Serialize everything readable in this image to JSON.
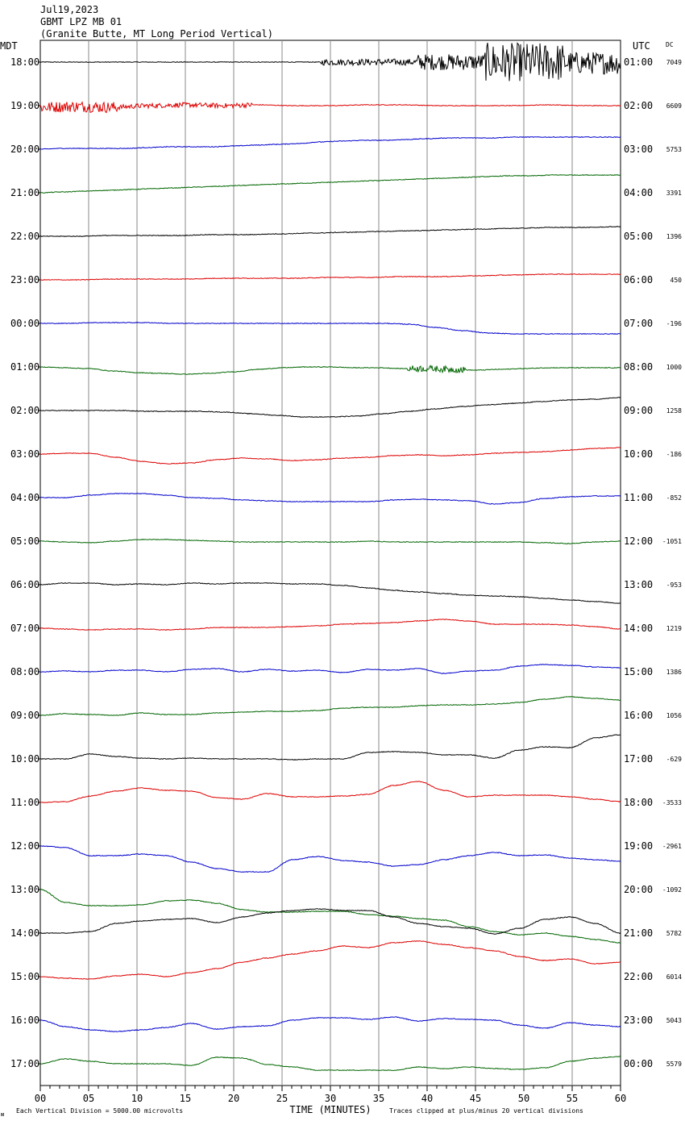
{
  "header": {
    "date": "Jul19,2023",
    "station": "GBMT LPZ MB 01",
    "description": "(Granite Butte, MT Long Period Vertical)"
  },
  "left_axis_label": "MDT",
  "right_axis_label": "UTC",
  "dc_label": "DC",
  "footer": {
    "scale_note": "Each Vertical Division = 5000.00 microvolts",
    "clip_note": "Traces clipped at plus/minus 20 vertical divisions",
    "corner_mark": "ᴍ"
  },
  "chart_data": {
    "type": "line",
    "title": "GBMT LPZ MB 01",
    "xlabel": "TIME (MINUTES)",
    "xlim": [
      0,
      60
    ],
    "x_ticks": [
      "00",
      "05",
      "10",
      "15",
      "20",
      "25",
      "30",
      "35",
      "40",
      "45",
      "50",
      "55",
      "60"
    ],
    "grid": "vertical lines every 5 minutes",
    "colors": [
      "#000000",
      "#dd0000",
      "#0000cc",
      "#006600"
    ],
    "rows": [
      {
        "mdt": "18:00",
        "utc": "01:00",
        "dc": "7049",
        "color": "#000000",
        "shape": [
          0,
          0,
          0,
          0,
          0,
          0,
          0,
          0,
          0,
          0,
          0,
          0,
          0,
          0,
          -1,
          -1
        ],
        "noise": [
          [
            29,
            43,
            4
          ],
          [
            39,
            46,
            10
          ],
          [
            46,
            54,
            24
          ],
          [
            54,
            60,
            14
          ]
        ]
      },
      {
        "mdt": "19:00",
        "utc": "02:00",
        "dc": "6609",
        "color": "#dd0000",
        "shape": [
          -2,
          -1,
          -2,
          0,
          1,
          0,
          1,
          0,
          0,
          1,
          1,
          0,
          0,
          0,
          1,
          0,
          0
        ],
        "noise": [
          [
            0,
            8,
            7
          ],
          [
            8,
            22,
            3
          ]
        ]
      },
      {
        "mdt": "20:00",
        "utc": "03:00",
        "dc": "5753",
        "color": "#0000cc",
        "shape": [
          0,
          1,
          1,
          1,
          1,
          2,
          3,
          3,
          3,
          4,
          5,
          6,
          7,
          9,
          10,
          11,
          11,
          12,
          13,
          14,
          14,
          14,
          15,
          15,
          15,
          15,
          15,
          15
        ],
        "noise": []
      },
      {
        "mdt": "21:00",
        "utc": "04:00",
        "dc": "3391",
        "color": "#006600",
        "shape": [
          0,
          1,
          2,
          3,
          4,
          5,
          6,
          7,
          8,
          9,
          10,
          11,
          12,
          13,
          14,
          15,
          16,
          17,
          18,
          19,
          20,
          21,
          21,
          22,
          22,
          22,
          22
        ],
        "noise": []
      },
      {
        "mdt": "22:00",
        "utc": "05:00",
        "dc": "1396",
        "color": "#000000",
        "shape": [
          0,
          0,
          1,
          1,
          1,
          2,
          2,
          3,
          4,
          5,
          6,
          7,
          8,
          9,
          10,
          11,
          11,
          12
        ],
        "noise": []
      },
      {
        "mdt": "23:00",
        "utc": "06:00",
        "dc": "450",
        "color": "#dd0000",
        "shape": [
          0,
          0,
          1,
          1,
          1,
          2,
          2,
          2,
          3,
          3,
          4,
          4,
          5,
          6,
          7,
          7,
          7
        ],
        "noise": []
      },
      {
        "mdt": "00:00",
        "utc": "07:00",
        "dc": "-196",
        "color": "#0000cc",
        "shape": [
          0,
          0,
          1,
          1,
          1,
          0,
          0,
          0,
          0,
          0,
          0,
          0,
          0,
          0,
          -1,
          -5,
          -9,
          -12,
          -13,
          -13,
          -13,
          -13,
          -13
        ],
        "noise": []
      },
      {
        "mdt": "01:00",
        "utc": "08:00",
        "dc": "1000",
        "color": "#006600",
        "shape": [
          0,
          -1,
          -2,
          -5,
          -7,
          -8,
          -9,
          -8,
          -6,
          -3,
          -1,
          0,
          0,
          -1,
          -1,
          -2,
          -2,
          -3,
          -4,
          -3,
          -2,
          -1,
          -1,
          -1,
          -1
        ],
        "noise": [
          [
            38,
            44,
            4
          ]
        ]
      },
      {
        "mdt": "02:00",
        "utc": "09:00",
        "dc": "1258",
        "color": "#000000",
        "shape": [
          0,
          0,
          0,
          0,
          -1,
          -1,
          -1,
          -2,
          -4,
          -6,
          -8,
          -8,
          -7,
          -4,
          -1,
          2,
          5,
          7,
          9,
          11,
          13,
          14,
          16
        ],
        "noise": []
      },
      {
        "mdt": "03:00",
        "utc": "10:00",
        "dc": "-186",
        "color": "#dd0000",
        "shape": [
          0,
          1,
          1,
          -4,
          -9,
          -12,
          -11,
          -7,
          -5,
          -6,
          -8,
          -7,
          -5,
          -4,
          -2,
          -1,
          -2,
          -1,
          1,
          2,
          3,
          5,
          7,
          8
        ],
        "noise": []
      },
      {
        "mdt": "04:00",
        "utc": "11:00",
        "dc": "-852",
        "color": "#0000cc",
        "shape": [
          0,
          0,
          3,
          5,
          5,
          3,
          0,
          -1,
          -3,
          -4,
          -5,
          -5,
          -5,
          -5,
          -3,
          -2,
          -3,
          -4,
          -8,
          -6,
          -1,
          1,
          2,
          2
        ],
        "noise": []
      },
      {
        "mdt": "05:00",
        "utc": "12:00",
        "dc": "-1051",
        "color": "#006600",
        "shape": [
          0,
          -1,
          -2,
          0,
          2,
          2,
          1,
          0,
          -1,
          -1,
          -1,
          -1,
          -1,
          0,
          -1,
          -1,
          -1,
          -1,
          -1,
          -1,
          -2,
          -3,
          -1,
          0
        ],
        "noise": []
      },
      {
        "mdt": "06:00",
        "utc": "13:00",
        "dc": "-953",
        "color": "#000000",
        "shape": [
          0,
          2,
          2,
          0,
          1,
          0,
          2,
          1,
          2,
          2,
          1,
          1,
          -1,
          -4,
          -7,
          -9,
          -11,
          -13,
          -14,
          -15,
          -17,
          -19,
          -21,
          -23
        ],
        "noise": []
      },
      {
        "mdt": "07:00",
        "utc": "14:00",
        "dc": "1219",
        "color": "#dd0000",
        "shape": [
          0,
          -1,
          -2,
          -1,
          -1,
          -2,
          -1,
          1,
          1,
          1,
          2,
          3,
          5,
          6,
          7,
          9,
          11,
          9,
          5,
          5,
          5,
          4,
          2,
          -1
        ],
        "noise": []
      },
      {
        "mdt": "08:00",
        "utc": "15:00",
        "dc": "1386",
        "color": "#0000cc",
        "shape": [
          0,
          1,
          0,
          2,
          2,
          0,
          3,
          4,
          0,
          3,
          1,
          2,
          -1,
          3,
          2,
          4,
          -2,
          1,
          2,
          7,
          9,
          8,
          6,
          5
        ],
        "noise": []
      },
      {
        "mdt": "09:00",
        "utc": "16:00",
        "dc": "1056",
        "color": "#006600",
        "shape": [
          0,
          2,
          1,
          0,
          3,
          1,
          1,
          3,
          4,
          5,
          5,
          6,
          9,
          10,
          10,
          12,
          13,
          13,
          14,
          16,
          20,
          23,
          21,
          19
        ],
        "noise": []
      },
      {
        "mdt": "10:00",
        "utc": "17:00",
        "dc": "-629",
        "color": "#000000",
        "shape": [
          0,
          0,
          6,
          3,
          1,
          0,
          1,
          0,
          0,
          0,
          -1,
          0,
          0,
          8,
          9,
          8,
          5,
          5,
          1,
          11,
          15,
          14,
          26,
          30
        ],
        "noise": []
      },
      {
        "mdt": "11:00",
        "utc": "18:00",
        "dc": "-3533",
        "color": "#dd0000",
        "shape": [
          0,
          1,
          8,
          14,
          18,
          15,
          14,
          6,
          4,
          11,
          7,
          7,
          8,
          10,
          21,
          26,
          15,
          7,
          9,
          9,
          9,
          7,
          4,
          1
        ],
        "noise": []
      },
      {
        "mdt": "12:00",
        "utc": "19:00",
        "dc": "-2961",
        "color": "#0000cc",
        "shape": [
          0,
          -2,
          -12,
          -12,
          -10,
          -12,
          -20,
          -28,
          -32,
          -32,
          -17,
          -13,
          -18,
          -20,
          -25,
          -23,
          -17,
          -12,
          -8,
          -12,
          -11,
          -15,
          -17,
          -19
        ],
        "noise": []
      },
      {
        "mdt": "13:00",
        "utc": "20:00",
        "dc": "-1092",
        "color": "#006600",
        "shape": [
          0,
          -16,
          -20,
          -20,
          -19,
          -14,
          -13,
          -17,
          -25,
          -28,
          -28,
          -27,
          -27,
          -31,
          -33,
          -36,
          -38,
          -46,
          -52,
          -56,
          -54,
          -58,
          -62,
          -66
        ],
        "noise": []
      },
      {
        "mdt": "14:00",
        "utc": "21:00",
        "dc": "5782",
        "color": "#000000",
        "shape": [
          0,
          0,
          2,
          12,
          15,
          17,
          18,
          13,
          20,
          25,
          28,
          30,
          28,
          28,
          20,
          12,
          8,
          6,
          -1,
          6,
          17,
          20,
          12,
          0
        ],
        "noise": []
      },
      {
        "mdt": "15:00",
        "utc": "22:00",
        "dc": "6014",
        "color": "#dd0000",
        "shape": [
          0,
          -2,
          -3,
          1,
          3,
          0,
          5,
          10,
          18,
          23,
          28,
          32,
          38,
          36,
          42,
          44,
          40,
          36,
          32,
          25,
          20,
          22,
          16,
          18
        ],
        "noise": []
      },
      {
        "mdt": "16:00",
        "utc": "23:00",
        "dc": "5043",
        "color": "#0000cc",
        "shape": [
          0,
          -8,
          -12,
          -14,
          -12,
          -9,
          -4,
          -11,
          -8,
          -7,
          0,
          3,
          3,
          1,
          4,
          -1,
          2,
          1,
          0,
          -6,
          -10,
          -3,
          -6,
          -8
        ],
        "noise": []
      },
      {
        "mdt": "17:00",
        "utc": "00:00",
        "dc": "5579",
        "color": "#006600",
        "shape": [
          0,
          6,
          3,
          0,
          0,
          0,
          -2,
          8,
          7,
          -1,
          -4,
          -8,
          -8,
          -8,
          -8,
          -4,
          -6,
          -4,
          -6,
          -7,
          -5,
          3,
          7,
          9
        ],
        "noise": []
      }
    ]
  }
}
